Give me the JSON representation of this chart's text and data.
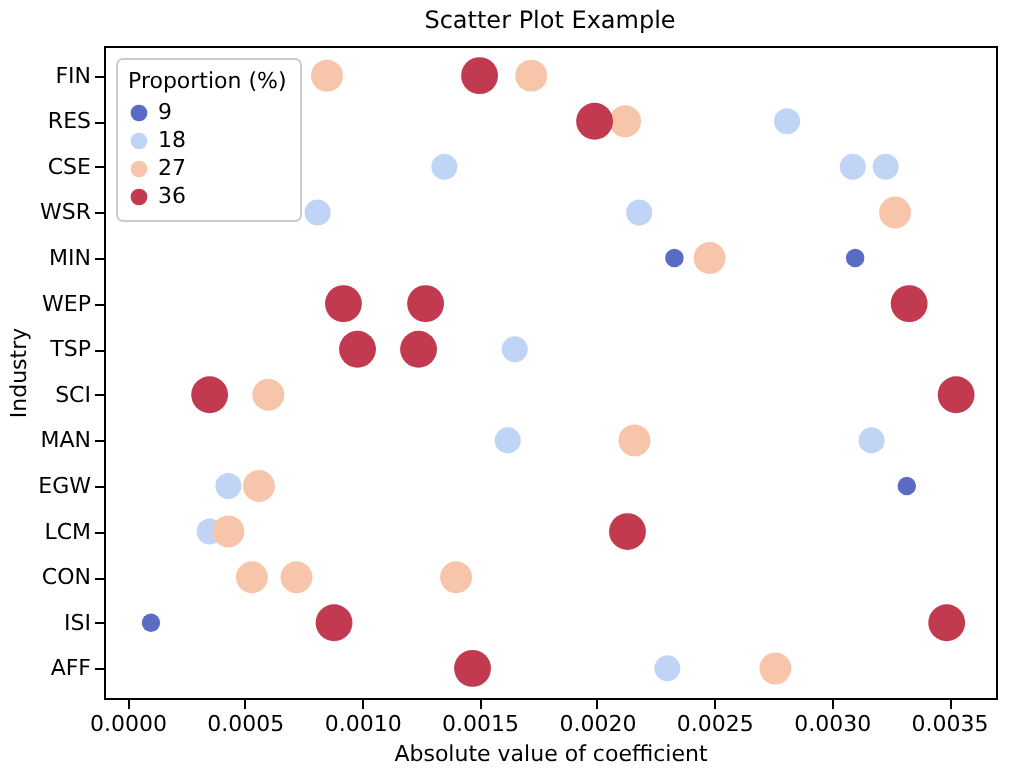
{
  "chart_data": {
    "type": "bubble",
    "title": "Scatter Plot Example",
    "xlabel": "Absolute value of coefficient",
    "ylabel": "Industry",
    "legend_title": "Proportion (%)",
    "orientation": "horizontal",
    "categories": [
      "FIN",
      "RES",
      "CSE",
      "WSR",
      "MIN",
      "WEP",
      "TSP",
      "SCI",
      "MAN",
      "EGW",
      "LCM",
      "CON",
      "ISI",
      "AFF"
    ],
    "xlim": [
      -0.0001,
      0.0037
    ],
    "xticks": [
      {
        "value": 0,
        "label": "0.0000"
      },
      {
        "value": 0.0005,
        "label": "0.0005"
      },
      {
        "value": 0.001,
        "label": "0.0010"
      },
      {
        "value": 0.0015,
        "label": "0.0015"
      },
      {
        "value": 0.002,
        "label": "0.0020"
      },
      {
        "value": 0.0025,
        "label": "0.0025"
      },
      {
        "value": 0.003,
        "label": "0.0030"
      },
      {
        "value": 0.0035,
        "label": "0.0035"
      }
    ],
    "grid": false,
    "legend": "top left",
    "marker": "circle",
    "series": [
      {
        "name": "9",
        "color": "#5a6bc4",
        "values": [
          null,
          null,
          null,
          null,
          0.00233,
          null,
          null,
          null,
          null,
          0.00332,
          null,
          null,
          0.0001,
          null
        ],
        "sizes": [
          null,
          null,
          null,
          null,
          0.25,
          null,
          null,
          null,
          null,
          0.25,
          null,
          null,
          0.25,
          null
        ]
      },
      {
        "color": "#5a6bc4",
        "values": [
          null,
          null,
          null,
          null,
          0.0031,
          null,
          null,
          null,
          null,
          null,
          null,
          null,
          null,
          null
        ],
        "sizes": [
          null,
          null,
          null,
          null,
          0.25,
          null,
          null,
          null,
          null,
          null,
          null,
          null,
          null,
          null
        ]
      },
      {
        "name": "18",
        "color": "#c0d4f5",
        "values": [
          null,
          0.00281,
          0.00135,
          0.00081,
          null,
          null,
          0.00165,
          null,
          0.00162,
          0.00043,
          0.00035,
          null,
          null,
          0.0023
        ],
        "sizes": [
          null,
          0.5,
          0.5,
          0.5,
          null,
          null,
          0.5,
          null,
          0.5,
          0.5,
          0.5,
          null,
          null,
          0.5
        ]
      },
      {
        "color": "#c0d4f5",
        "values": [
          null,
          null,
          0.00309,
          0.00218,
          null,
          null,
          null,
          null,
          0.00317,
          null,
          null,
          null,
          null,
          null
        ],
        "sizes": [
          null,
          null,
          0.5,
          0.5,
          null,
          null,
          null,
          null,
          0.5,
          null,
          null,
          null,
          null,
          null
        ]
      },
      {
        "color": "#c0d4f5",
        "values": [
          null,
          null,
          0.00323,
          null,
          null,
          null,
          null,
          null,
          null,
          null,
          null,
          null,
          null,
          null
        ],
        "sizes": [
          null,
          null,
          0.5,
          null,
          null,
          null,
          null,
          null,
          null,
          null,
          null,
          null,
          null,
          null
        ]
      },
      {
        "name": "27",
        "color": "#f7c5aa",
        "values": [
          0.00085,
          0.00212,
          null,
          0.00327,
          0.00248,
          null,
          null,
          0.0006,
          0.00216,
          0.00056,
          0.00043,
          0.00053,
          null,
          0.00276
        ],
        "sizes": [
          0.75,
          0.75,
          null,
          0.75,
          0.75,
          null,
          null,
          0.75,
          0.75,
          0.75,
          0.75,
          0.75,
          null,
          0.75
        ]
      },
      {
        "color": "#f7c5aa",
        "values": [
          0.00172,
          null,
          null,
          null,
          null,
          null,
          null,
          null,
          null,
          null,
          null,
          0.00072,
          null,
          null
        ],
        "sizes": [
          0.75,
          null,
          null,
          null,
          null,
          null,
          null,
          null,
          null,
          null,
          null,
          0.75,
          null,
          null
        ]
      },
      {
        "color": "#f7c5aa",
        "values": [
          null,
          null,
          null,
          null,
          null,
          null,
          null,
          null,
          null,
          null,
          null,
          0.0014,
          null,
          null
        ],
        "sizes": [
          null,
          null,
          null,
          null,
          null,
          null,
          null,
          null,
          null,
          null,
          null,
          0.75,
          null,
          null
        ]
      },
      {
        "name": "36",
        "color": "#c23a50",
        "values": [
          0.0015,
          0.00199,
          null,
          null,
          null,
          0.00092,
          0.00098,
          0.00035,
          null,
          null,
          0.00213,
          null,
          0.00088,
          0.00147
        ],
        "sizes": [
          1,
          1,
          null,
          null,
          null,
          1,
          1,
          1,
          null,
          null,
          1,
          null,
          1,
          1
        ]
      },
      {
        "color": "#c23a50",
        "values": [
          null,
          null,
          null,
          null,
          null,
          0.00127,
          0.00124,
          0.00353,
          null,
          null,
          null,
          null,
          0.00349,
          null
        ],
        "sizes": [
          null,
          null,
          null,
          null,
          null,
          1,
          1,
          1,
          null,
          null,
          null,
          null,
          1,
          null
        ]
      },
      {
        "color": "#c23a50",
        "values": [
          null,
          null,
          null,
          null,
          null,
          0.00333,
          null,
          null,
          null,
          null,
          null,
          null,
          null,
          null
        ],
        "sizes": [
          null,
          null,
          null,
          null,
          null,
          1,
          null,
          null,
          null,
          null,
          null,
          null,
          null,
          null
        ]
      }
    ]
  }
}
